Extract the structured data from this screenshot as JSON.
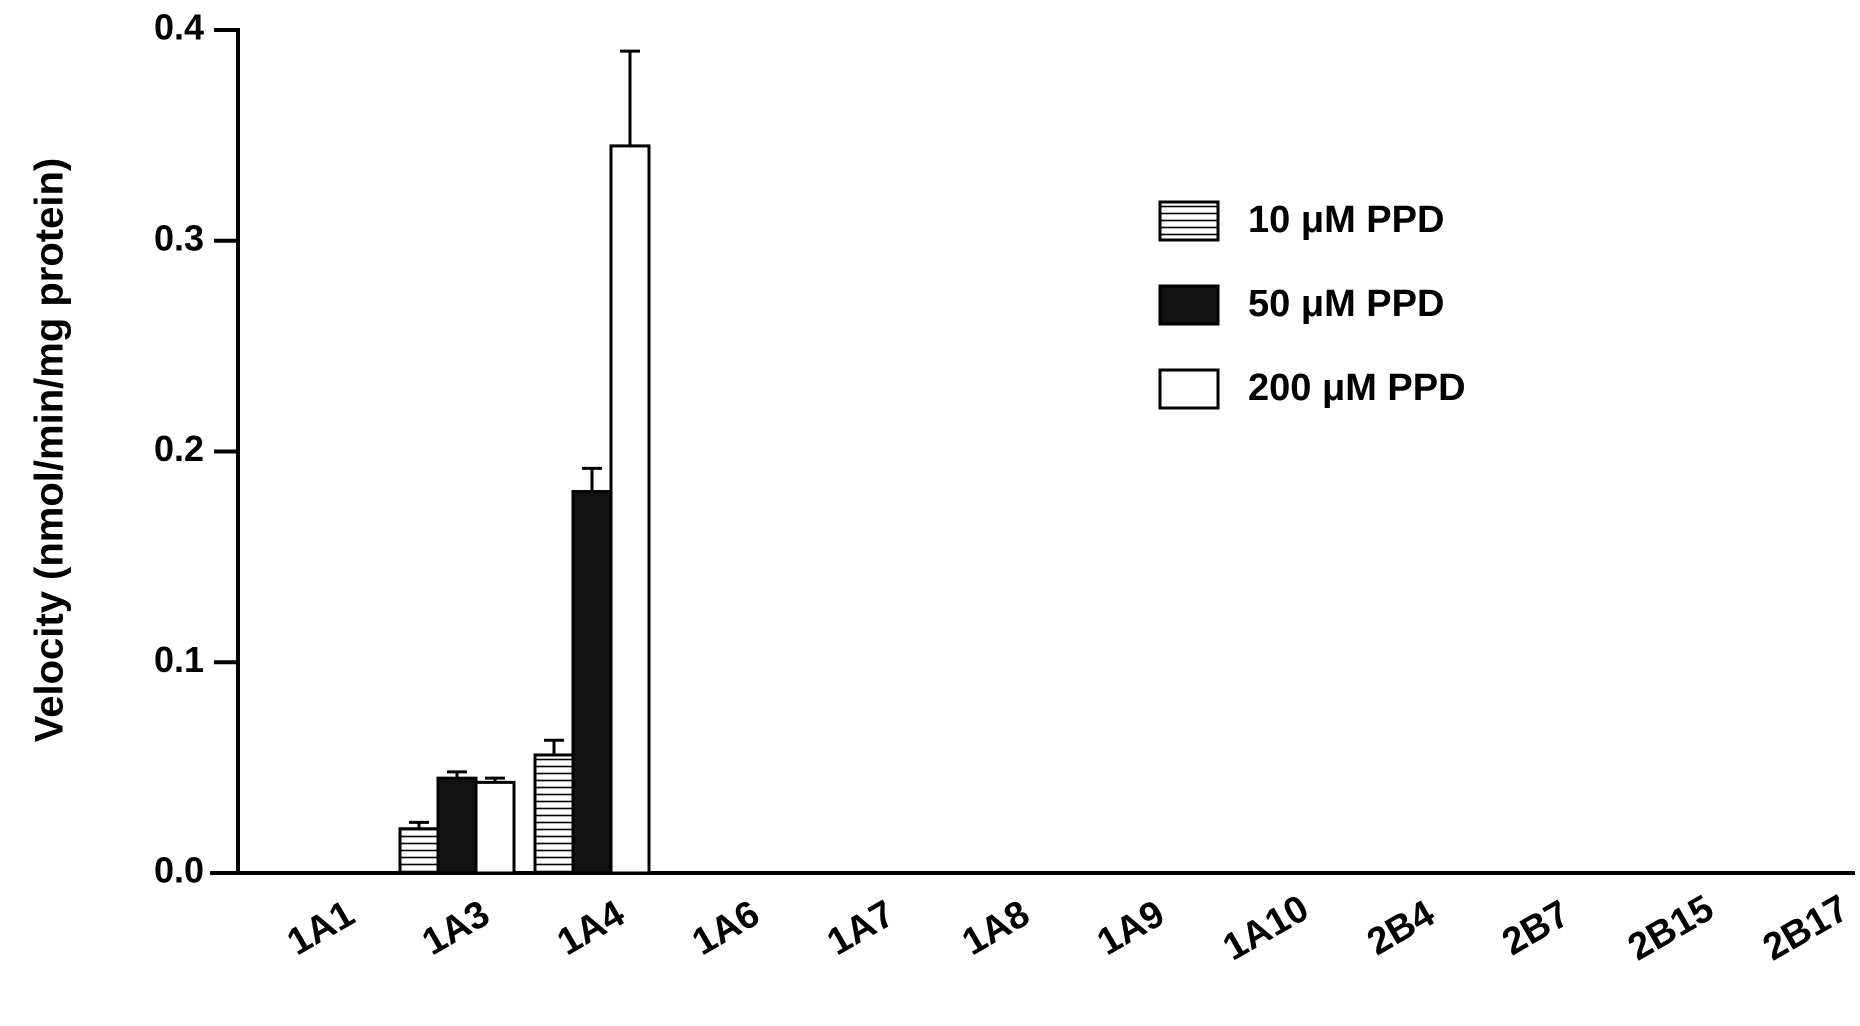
{
  "chart_data": {
    "type": "bar",
    "title": "",
    "xlabel": "",
    "ylabel": "Velocity (nmol/min/mg protein)",
    "ylim": [
      0,
      0.4
    ],
    "yticks": [
      "0.0",
      "0.1",
      "0.2",
      "0.3",
      "0.4"
    ],
    "ytick_values": [
      0,
      0.1,
      0.2,
      0.3,
      0.4
    ],
    "categories": [
      "1A1",
      "1A3",
      "1A4",
      "1A6",
      "1A7",
      "1A8",
      "1A9",
      "1A10",
      "2B4",
      "2B7",
      "2B15",
      "2B17"
    ],
    "series": [
      {
        "name": "10 μM PPD",
        "pattern": "horizontal-stripes",
        "values": [
          0,
          0.021,
          0.056,
          0,
          0,
          0,
          0,
          0,
          0,
          0,
          0,
          0
        ],
        "errors": [
          0,
          0.003,
          0.007,
          0,
          0,
          0,
          0,
          0,
          0,
          0,
          0,
          0
        ]
      },
      {
        "name": "50 μM PPD",
        "pattern": "solid-black",
        "values": [
          0,
          0.045,
          0.181,
          0,
          0,
          0,
          0,
          0,
          0,
          0,
          0,
          0
        ],
        "errors": [
          0,
          0.003,
          0.011,
          0,
          0,
          0,
          0,
          0,
          0,
          0,
          0,
          0
        ]
      },
      {
        "name": "200 μM PPD",
        "pattern": "white",
        "values": [
          0,
          0.043,
          0.345,
          0,
          0,
          0,
          0,
          0,
          0,
          0,
          0,
          0
        ],
        "errors": [
          0,
          0.002,
          0.045,
          0,
          0,
          0,
          0,
          0,
          0,
          0,
          0,
          0
        ]
      }
    ],
    "legend_position": "upper-right",
    "grid": false,
    "colors": {
      "axis": "#000000",
      "fill_dark": "#111111",
      "fill_light": "#ffffff"
    }
  }
}
